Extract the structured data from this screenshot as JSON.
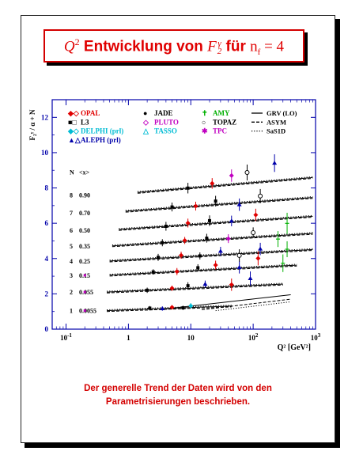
{
  "title": {
    "q": "Q",
    "q_exp": "2",
    "word1": " Entwicklung von ",
    "f": "F",
    "f_sup": "γ",
    "f_sub": "2",
    "word2": " für ",
    "n": "n",
    "n_sub": "f",
    "eq": " = 4"
  },
  "caption": {
    "line1": "Der generelle Trend der Daten wird von den",
    "line2": "Parametrisierungen beschrieben."
  },
  "colors": {
    "title_red": "#e00000",
    "opal": "#e00000",
    "l3": "#000000",
    "delphi": "#00bcd4",
    "aleph": "#0000aa",
    "jade": "#000000",
    "pluto": "#c000c0",
    "tasso": "#00bcd4",
    "amy": "#00b000",
    "topaz": "#000000",
    "tpc": "#c000c0",
    "axis": "#0000aa",
    "curve": "#000000"
  },
  "chart_data": {
    "type": "scatter",
    "xlabel": "Q² [GeV²]",
    "ylabel": "F₂ᵞ / α + N",
    "x_log": true,
    "xlim": [
      0.06,
      1000
    ],
    "ylim": [
      0,
      13
    ],
    "x_ticks": [
      {
        "value": 0.1,
        "base": "10",
        "exp": "-1"
      },
      {
        "value": 1,
        "base": "1",
        "exp": ""
      },
      {
        "value": 10,
        "base": "10",
        "exp": ""
      },
      {
        "value": 100,
        "base": "10",
        "exp": "2"
      },
      {
        "value": 1000,
        "base": "10",
        "exp": "3"
      }
    ],
    "y_ticks": [
      0,
      2,
      4,
      6,
      8,
      10,
      12
    ],
    "grid": false,
    "legend_position": "top",
    "legend": {
      "col1": [
        {
          "label": "OPAL",
          "color": "#e00000",
          "marker": "◆◇"
        },
        {
          "label": "L3",
          "color": "#000000",
          "marker": "■□"
        },
        {
          "label": "DELPHI (prl)",
          "color": "#00bcd4",
          "marker": "◆◇"
        },
        {
          "label": "ALEPH (prl)",
          "color": "#0000aa",
          "marker": "▲△"
        }
      ],
      "col2": [
        {
          "label": "JADE",
          "color": "#000000",
          "marker": "●"
        },
        {
          "label": "PLUTO",
          "color": "#c000c0",
          "marker": "◇"
        },
        {
          "label": "TASSO",
          "color": "#00bcd4",
          "marker": "△"
        }
      ],
      "col3": [
        {
          "label": "AMY",
          "color": "#00b000",
          "marker": "✝"
        },
        {
          "label": "TOPAZ",
          "color": "#000000",
          "marker": "○"
        },
        {
          "label": "TPC",
          "color": "#c000c0",
          "marker": "✱"
        }
      ],
      "col4": [
        {
          "label": "GRV (LO)",
          "style": "solid"
        },
        {
          "label": "ASYM",
          "style": "dashed"
        },
        {
          "label": "SaS1D",
          "style": "dotted"
        }
      ]
    },
    "table_header": {
      "n": "N",
      "x": "<x>"
    },
    "bins": [
      {
        "N": 1,
        "x": "0.0055",
        "y0": 1.05,
        "slope": 0.13,
        "xmin": 0.45,
        "xmax": 45,
        "tpc_at": 0.2
      },
      {
        "N": 2,
        "x": "0.055",
        "y0": 2.1,
        "slope": 0.16,
        "xmin": 0.45,
        "xmax": 300,
        "tpc_at": 0.2
      },
      {
        "N": 3,
        "x": "0.15",
        "y0": 3.05,
        "slope": 0.19,
        "xmin": 0.5,
        "xmax": 500,
        "tpc_at": 0.2
      },
      {
        "N": 4,
        "x": "0.25",
        "y0": 3.85,
        "slope": 0.2,
        "xmin": 0.5,
        "xmax": 900,
        "tpc_at": null
      },
      {
        "N": 5,
        "x": "0.35",
        "y0": 4.7,
        "slope": 0.22,
        "xmin": 0.55,
        "xmax": 900,
        "tpc_at": null
      },
      {
        "N": 6,
        "x": "0.50",
        "y0": 5.6,
        "slope": 0.24,
        "xmin": 0.7,
        "xmax": 900,
        "tpc_at": null
      },
      {
        "N": 7,
        "x": "0.70",
        "y0": 6.6,
        "slope": 0.26,
        "xmin": 0.9,
        "xmax": 900,
        "tpc_at": null
      },
      {
        "N": 8,
        "x": "0.90",
        "y0": 7.6,
        "slope": 0.3,
        "xmin": 1.4,
        "xmax": 900,
        "tpc_at": null
      }
    ],
    "bin1_extra_curves": [
      {
        "style": "solid",
        "from": [
          4,
          1.15
        ],
        "to": [
          400,
          1.95
        ]
      },
      {
        "style": "dashed",
        "from": [
          15,
          1.1
        ],
        "to": [
          400,
          1.7
        ]
      },
      {
        "style": "dotted",
        "from": [
          25,
          1.05
        ],
        "to": [
          400,
          1.55
        ]
      }
    ],
    "points": [
      {
        "bin": 1,
        "q2": 2.2,
        "dy": 0.05,
        "e": 0.12,
        "c": "#000000",
        "m": "sq"
      },
      {
        "bin": 1,
        "q2": 3.5,
        "dy": 0.0,
        "e": 0.12,
        "c": "#0000aa",
        "m": "tri"
      },
      {
        "bin": 1,
        "q2": 5.0,
        "dy": 0.05,
        "e": 0.12,
        "c": "#e00000",
        "m": "dia"
      },
      {
        "bin": 1,
        "q2": 7.5,
        "dy": 0.0,
        "e": 0.12,
        "c": "#000000",
        "m": "sq"
      },
      {
        "bin": 1,
        "q2": 10.0,
        "dy": 0.1,
        "e": 0.15,
        "c": "#00bcd4",
        "m": "dia"
      },
      {
        "bin": 2,
        "q2": 2.0,
        "dy": 0.0,
        "e": 0.15,
        "c": "#000000",
        "m": "sq"
      },
      {
        "bin": 2,
        "q2": 5.0,
        "dy": 0.05,
        "e": 0.15,
        "c": "#e00000",
        "m": "dia"
      },
      {
        "bin": 2,
        "q2": 9.0,
        "dy": 0.15,
        "e": 0.2,
        "c": "#000000",
        "m": "sq"
      },
      {
        "bin": 2,
        "q2": 17.0,
        "dy": 0.2,
        "e": 0.2,
        "c": "#0000aa",
        "m": "tri"
      },
      {
        "bin": 2,
        "q2": 45.0,
        "dy": 0.1,
        "e": 0.35,
        "c": "#e00000",
        "m": "dia"
      },
      {
        "bin": 2,
        "q2": 90.0,
        "dy": 0.4,
        "e": 0.4,
        "c": "#0000aa",
        "m": "tri"
      },
      {
        "bin": 3,
        "q2": 2.5,
        "dy": 0.05,
        "e": 0.15,
        "c": "#000000",
        "m": "sq"
      },
      {
        "bin": 3,
        "q2": 6.0,
        "dy": 0.0,
        "e": 0.2,
        "c": "#e00000",
        "m": "dia"
      },
      {
        "bin": 3,
        "q2": 13.0,
        "dy": 0.15,
        "e": 0.2,
        "c": "#000000",
        "m": "sq"
      },
      {
        "bin": 3,
        "q2": 25.0,
        "dy": 0.25,
        "e": 0.25,
        "c": "#e00000",
        "m": "dia"
      },
      {
        "bin": 3,
        "q2": 60.0,
        "dy": 0.05,
        "e": 0.35,
        "c": "#0000aa",
        "m": "tri"
      },
      {
        "bin": 3,
        "q2": 120.0,
        "dy": 0.5,
        "e": 0.4,
        "c": "#e00000",
        "m": "dia"
      },
      {
        "bin": 3,
        "q2": 300.0,
        "dy": 0.15,
        "e": 0.5,
        "c": "#00b000",
        "m": "cross"
      },
      {
        "bin": 4,
        "q2": 3.0,
        "dy": 0.05,
        "e": 0.2,
        "c": "#000000",
        "m": "sq"
      },
      {
        "bin": 4,
        "q2": 7.0,
        "dy": 0.1,
        "e": 0.2,
        "c": "#e00000",
        "m": "dia"
      },
      {
        "bin": 4,
        "q2": 14.0,
        "dy": 0.0,
        "e": 0.2,
        "c": "#000000",
        "m": "sq"
      },
      {
        "bin": 4,
        "q2": 30.0,
        "dy": 0.2,
        "e": 0.25,
        "c": "#0000aa",
        "m": "tri"
      },
      {
        "bin": 4,
        "q2": 60.0,
        "dy": -0.1,
        "e": 0.35,
        "c": "#000000",
        "m": "circ"
      },
      {
        "bin": 4,
        "q2": 130.0,
        "dy": 0.2,
        "e": 0.35,
        "c": "#0000aa",
        "m": "tri"
      },
      {
        "bin": 4,
        "q2": 350.0,
        "dy": 0.1,
        "e": 0.45,
        "c": "#00b000",
        "m": "cross"
      },
      {
        "bin": 5,
        "q2": 3.5,
        "dy": 0.0,
        "e": 0.2,
        "c": "#000000",
        "m": "sq"
      },
      {
        "bin": 5,
        "q2": 8.0,
        "dy": 0.05,
        "e": 0.2,
        "c": "#e00000",
        "m": "dia"
      },
      {
        "bin": 5,
        "q2": 18.0,
        "dy": 0.1,
        "e": 0.25,
        "c": "#000000",
        "m": "sq"
      },
      {
        "bin": 5,
        "q2": 40.0,
        "dy": 0.0,
        "e": 0.25,
        "c": "#c000c0",
        "m": "dia"
      },
      {
        "bin": 5,
        "q2": 100.0,
        "dy": 0.25,
        "e": 0.3,
        "c": "#000000",
        "m": "circ"
      },
      {
        "bin": 5,
        "q2": 250.0,
        "dy": -0.2,
        "e": 0.45,
        "c": "#00b000",
        "m": "cross"
      },
      {
        "bin": 6,
        "q2": 4.0,
        "dy": 0.0,
        "e": 0.25,
        "c": "#000000",
        "m": "sq"
      },
      {
        "bin": 6,
        "q2": 9.0,
        "dy": 0.1,
        "e": 0.25,
        "c": "#e00000",
        "m": "dia"
      },
      {
        "bin": 6,
        "q2": 20.0,
        "dy": 0.15,
        "e": 0.3,
        "c": "#000000",
        "m": "sq"
      },
      {
        "bin": 6,
        "q2": 45.0,
        "dy": 0.05,
        "e": 0.3,
        "c": "#0000aa",
        "m": "tri"
      },
      {
        "bin": 6,
        "q2": 110.0,
        "dy": 0.3,
        "e": 0.35,
        "c": "#e00000",
        "m": "dia"
      },
      {
        "bin": 6,
        "q2": 350.0,
        "dy": -0.3,
        "e": 0.6,
        "c": "#00b000",
        "m": "cross"
      },
      {
        "bin": 7,
        "q2": 5.0,
        "dy": 0.05,
        "e": 0.25,
        "c": "#000000",
        "m": "sq"
      },
      {
        "bin": 7,
        "q2": 12.0,
        "dy": 0.0,
        "e": 0.25,
        "c": "#e00000",
        "m": "dia"
      },
      {
        "bin": 7,
        "q2": 25.0,
        "dy": 0.2,
        "e": 0.3,
        "c": "#000000",
        "m": "sq"
      },
      {
        "bin": 7,
        "q2": 60.0,
        "dy": -0.1,
        "e": 0.35,
        "c": "#0000aa",
        "m": "tri"
      },
      {
        "bin": 7,
        "q2": 130.0,
        "dy": 0.3,
        "e": 0.4,
        "c": "#000000",
        "m": "circ"
      },
      {
        "bin": 8,
        "q2": 9.0,
        "dy": 0.0,
        "e": 0.3,
        "c": "#000000",
        "m": "sq"
      },
      {
        "bin": 8,
        "q2": 22.0,
        "dy": 0.15,
        "e": 0.3,
        "c": "#e00000",
        "m": "dia"
      },
      {
        "bin": 8,
        "q2": 45.0,
        "dy": 0.5,
        "e": 0.35,
        "c": "#c000c0",
        "m": "dia"
      },
      {
        "bin": 8,
        "q2": 80.0,
        "dy": 0.6,
        "e": 0.45,
        "c": "#000000",
        "m": "circ"
      },
      {
        "bin": 8,
        "q2": 220.0,
        "dy": 1.0,
        "e": 0.5,
        "c": "#0000aa",
        "m": "tri"
      }
    ]
  }
}
